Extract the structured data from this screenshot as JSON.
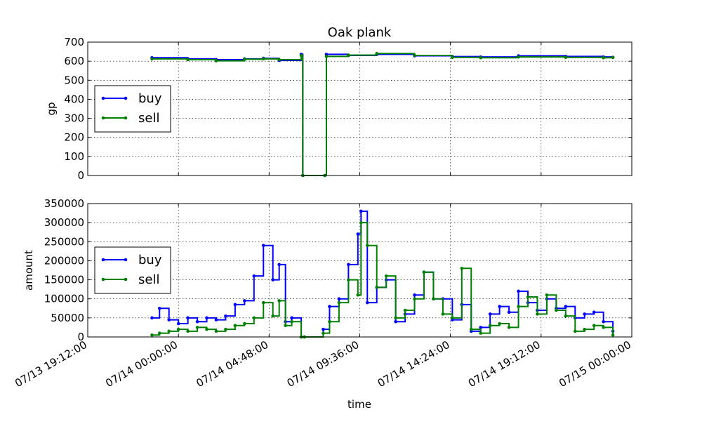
{
  "chart_data": [
    {
      "type": "line",
      "title": "Oak plank",
      "xlabel": "",
      "ylabel": "gp",
      "xlim": [
        "07/13 19:12:00",
        "07/15 00:00:00"
      ],
      "ylim": [
        0,
        700
      ],
      "yticks": [
        0,
        100,
        200,
        300,
        400,
        500,
        600,
        700
      ],
      "ytick_labels": [
        "0",
        "100",
        "200",
        "300",
        "400",
        "500",
        "600",
        "700"
      ],
      "grid": true,
      "legend": "center-left",
      "series": [
        {
          "name": "buy",
          "color": "#0000ff",
          "x": [
            "07/13 22:36:00",
            "07/14 00:30:00",
            "07/14 02:00:00",
            "07/14 03:30:00",
            "07/14 04:30:00",
            "07/14 05:20:00",
            "07/14 06:30:00",
            "07/14 06:35:00",
            "07/14 07:45:00",
            "07/14 07:50:00",
            "07/14 09:00:00",
            "07/14 10:30:00",
            "07/14 12:30:00",
            "07/14 14:30:00",
            "07/14 16:00:00",
            "07/14 18:00:00",
            "07/14 20:30:00",
            "07/14 22:30:00",
            "07/14 23:00:00"
          ],
          "y": [
            618,
            612,
            608,
            612,
            615,
            604,
            636,
            0,
            0,
            636,
            630,
            636,
            628,
            624,
            622,
            628,
            625,
            622,
            620
          ]
        },
        {
          "name": "sell",
          "color": "#008000",
          "x": [
            "07/13 22:36:00",
            "07/14 00:30:00",
            "07/14 02:00:00",
            "07/14 03:30:00",
            "07/14 04:30:00",
            "07/14 05:20:00",
            "07/14 06:30:00",
            "07/14 06:35:00",
            "07/14 07:45:00",
            "07/14 07:50:00",
            "07/14 09:00:00",
            "07/14 10:30:00",
            "07/14 12:30:00",
            "07/14 14:30:00",
            "07/14 16:00:00",
            "07/14 18:00:00",
            "07/14 20:30:00",
            "07/14 22:30:00",
            "07/14 23:00:00"
          ],
          "y": [
            612,
            608,
            602,
            610,
            612,
            608,
            630,
            0,
            0,
            625,
            632,
            640,
            630,
            620,
            618,
            622,
            620,
            618,
            620
          ]
        }
      ]
    },
    {
      "type": "line",
      "title": "",
      "xlabel": "time",
      "ylabel": "amount",
      "xlim": [
        "07/13 19:12:00",
        "07/15 00:00:00"
      ],
      "ylim": [
        0,
        350000
      ],
      "yticks": [
        0,
        50000,
        100000,
        150000,
        200000,
        250000,
        300000,
        350000
      ],
      "ytick_labels": [
        "0",
        "50000",
        "100000",
        "150000",
        "200000",
        "250000",
        "300000",
        "350000"
      ],
      "xticks": [
        "07/13 19:12:00",
        "07/14 00:00:00",
        "07/14 04:48:00",
        "07/14 09:36:00",
        "07/14 14:24:00",
        "07/14 19:12:00",
        "07/15 00:00:00"
      ],
      "grid": true,
      "legend": "center-left",
      "series": [
        {
          "name": "buy",
          "color": "#0000ff",
          "x": [
            "07/13 22:36:00",
            "07/13 23:00:00",
            "07/13 23:30:00",
            "07/14 00:00:00",
            "07/14 00:30:00",
            "07/14 01:00:00",
            "07/14 01:30:00",
            "07/14 02:00:00",
            "07/14 02:30:00",
            "07/14 03:00:00",
            "07/14 03:30:00",
            "07/14 04:00:00",
            "07/14 04:30:00",
            "07/14 05:00:00",
            "07/14 05:20:00",
            "07/14 05:40:00",
            "07/14 06:00:00",
            "07/14 06:30:00",
            "07/14 06:40:00",
            "07/14 07:40:00",
            "07/14 08:00:00",
            "07/14 08:30:00",
            "07/14 09:00:00",
            "07/14 09:30:00",
            "07/14 09:40:00",
            "07/14 10:00:00",
            "07/14 10:30:00",
            "07/14 11:00:00",
            "07/14 11:30:00",
            "07/14 12:00:00",
            "07/14 12:30:00",
            "07/14 13:00:00",
            "07/14 13:30:00",
            "07/14 14:00:00",
            "07/14 14:30:00",
            "07/14 15:00:00",
            "07/14 15:30:00",
            "07/14 16:00:00",
            "07/14 16:30:00",
            "07/14 17:00:00",
            "07/14 17:30:00",
            "07/14 18:00:00",
            "07/14 18:30:00",
            "07/14 19:00:00",
            "07/14 19:30:00",
            "07/14 20:00:00",
            "07/14 20:30:00",
            "07/14 21:00:00",
            "07/14 21:30:00",
            "07/14 22:00:00",
            "07/14 22:30:00",
            "07/14 23:00:00"
          ],
          "y": [
            50000,
            75000,
            45000,
            35000,
            50000,
            40000,
            50000,
            45000,
            55000,
            85000,
            95000,
            160000,
            240000,
            150000,
            190000,
            40000,
            50000,
            0,
            0,
            20000,
            80000,
            100000,
            190000,
            270000,
            330000,
            90000,
            130000,
            150000,
            40000,
            60000,
            110000,
            170000,
            100000,
            100000,
            45000,
            85000,
            15000,
            25000,
            60000,
            80000,
            65000,
            120000,
            90000,
            70000,
            100000,
            75000,
            80000,
            50000,
            60000,
            65000,
            40000,
            15000
          ]
        },
        {
          "name": "sell",
          "color": "#008000",
          "x": [
            "07/13 22:36:00",
            "07/13 23:00:00",
            "07/13 23:30:00",
            "07/14 00:00:00",
            "07/14 00:30:00",
            "07/14 01:00:00",
            "07/14 01:30:00",
            "07/14 02:00:00",
            "07/14 02:30:00",
            "07/14 03:00:00",
            "07/14 03:30:00",
            "07/14 04:00:00",
            "07/14 04:30:00",
            "07/14 05:00:00",
            "07/14 05:20:00",
            "07/14 05:40:00",
            "07/14 06:00:00",
            "07/14 06:30:00",
            "07/14 06:40:00",
            "07/14 07:40:00",
            "07/14 08:00:00",
            "07/14 08:30:00",
            "07/14 09:00:00",
            "07/14 09:30:00",
            "07/14 09:40:00",
            "07/14 10:00:00",
            "07/14 10:30:00",
            "07/14 11:00:00",
            "07/14 11:30:00",
            "07/14 12:00:00",
            "07/14 12:30:00",
            "07/14 13:00:00",
            "07/14 13:30:00",
            "07/14 14:00:00",
            "07/14 14:30:00",
            "07/14 15:00:00",
            "07/14 15:30:00",
            "07/14 16:00:00",
            "07/14 16:30:00",
            "07/14 17:00:00",
            "07/14 17:30:00",
            "07/14 18:00:00",
            "07/14 18:30:00",
            "07/14 19:00:00",
            "07/14 19:30:00",
            "07/14 20:00:00",
            "07/14 20:30:00",
            "07/14 21:00:00",
            "07/14 21:30:00",
            "07/14 22:00:00",
            "07/14 22:30:00",
            "07/14 23:00:00"
          ],
          "y": [
            5000,
            10000,
            15000,
            20000,
            15000,
            25000,
            20000,
            15000,
            20000,
            30000,
            35000,
            50000,
            90000,
            55000,
            95000,
            30000,
            40000,
            0,
            0,
            10000,
            40000,
            90000,
            150000,
            110000,
            300000,
            240000,
            130000,
            160000,
            50000,
            70000,
            100000,
            170000,
            100000,
            60000,
            50000,
            180000,
            20000,
            10000,
            30000,
            35000,
            25000,
            80000,
            105000,
            60000,
            110000,
            70000,
            55000,
            15000,
            20000,
            30000,
            25000,
            5000
          ]
        }
      ]
    }
  ]
}
